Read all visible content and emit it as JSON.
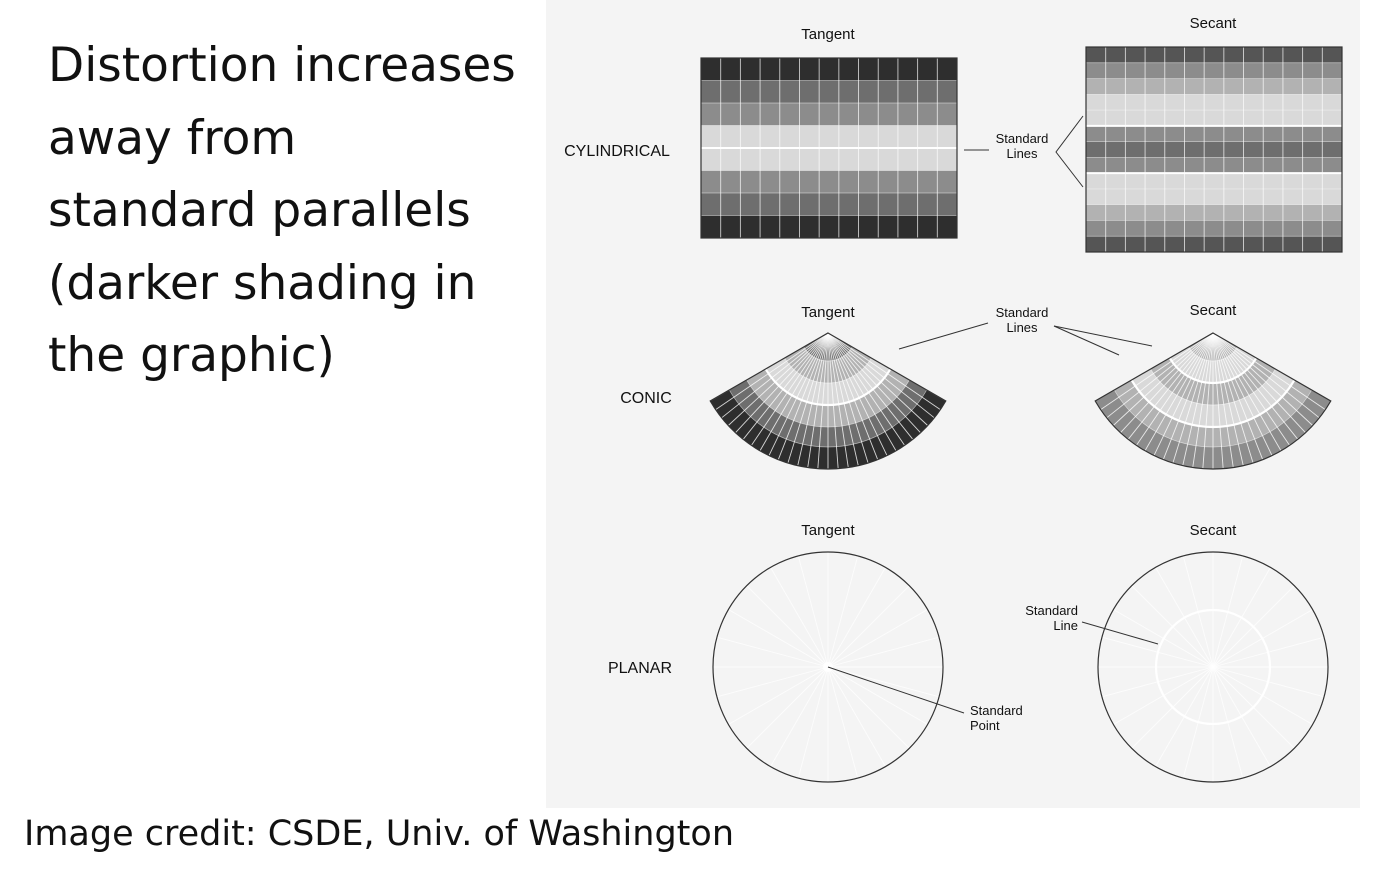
{
  "slide": {
    "body_text": "Distortion increases away from standard parallels (darker shading in the graphic)",
    "credit": "Image credit: CSDE, Univ. of Washington"
  },
  "figure": {
    "rows": {
      "cylindrical": "CYLINDRICAL",
      "conic": "CONIC",
      "planar": "PLANAR"
    },
    "columns": {
      "tangent": "Tangent",
      "secant": "Secant"
    },
    "annotations": {
      "standard_lines_1": "Standard",
      "standard_lines_2": "Lines",
      "standard_line_1": "Standard",
      "standard_line_2": "Line",
      "standard_point_1": "Standard",
      "standard_point_2": "Point"
    },
    "shades": {
      "darkest": "#2e2e2e",
      "dark": "#555555",
      "mid_dark": "#6e6e6e",
      "mid": "#8c8c8c",
      "light": "#b2b2b2",
      "lightest": "#d9d9d9",
      "standard": "#ffffff"
    }
  }
}
